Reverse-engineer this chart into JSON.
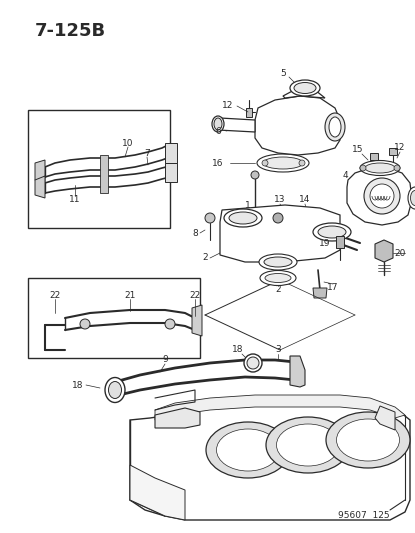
{
  "title": "7-125B",
  "footer": "95607  125",
  "bg_color": "#ffffff",
  "line_color": "#2a2a2a",
  "title_fontsize": 13,
  "label_fontsize": 6.5,
  "footer_fontsize": 6.5,
  "fig_width": 4.15,
  "fig_height": 5.33,
  "dpi": 100
}
